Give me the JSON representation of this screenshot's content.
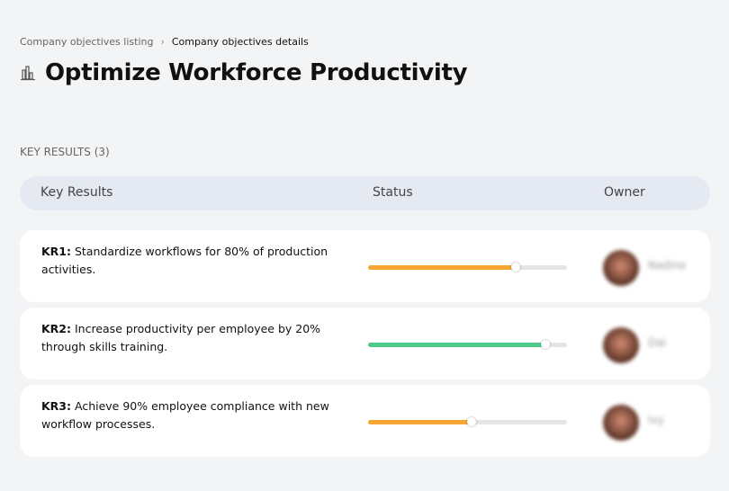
{
  "breadcrumb": {
    "parent": "Company objectives listing",
    "current": "Company objectives details"
  },
  "title": "Optimize Workforce Productivity",
  "title_icon": "building-chart-icon",
  "section_label": "KEY RESULTS (3)",
  "table": {
    "headers": {
      "key_results": "Key Results",
      "status": "Status",
      "owner": "Owner"
    }
  },
  "key_results": [
    {
      "id": "KR1:",
      "text": " Standardize workflows for 80% of production activities.",
      "progress": 74,
      "color": "#f7a534",
      "owner": "Nadine"
    },
    {
      "id": "KR2:",
      "text": " Increase productivity per employee by 20% through skills training.",
      "progress": 89,
      "color": "#4ec98c",
      "owner": "Dai"
    },
    {
      "id": "KR3:",
      "text": " Achieve 90% employee compliance with new workflow processes.",
      "progress": 52,
      "color": "#f7a534",
      "owner": "Ivy"
    }
  ]
}
